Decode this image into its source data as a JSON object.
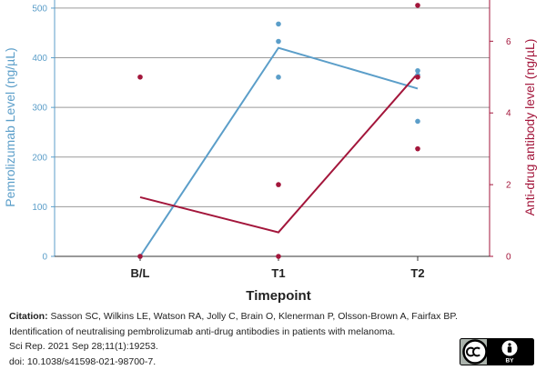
{
  "chart_data": {
    "type": "line",
    "categories": [
      "B/L",
      "T1",
      "T2"
    ],
    "xlabel": "Timepoint",
    "ylabel_left": "Pemrolizumab Level (ng/µL)",
    "ylabel_right": "Anti-drug antibody level (ng/µL)",
    "ylim_left": [
      0,
      520
    ],
    "ylim_right": [
      0,
      7.2
    ],
    "yticks_left": [
      0,
      100,
      200,
      300,
      400,
      500
    ],
    "yticks_right": [
      0,
      2,
      4,
      6
    ],
    "grid": true,
    "series": [
      {
        "axis": "left",
        "color": "#5b9ec9",
        "mean_values": [
          0,
          420,
          338
        ],
        "points": [
          {
            "x": "B/L",
            "y": 0
          },
          {
            "x": "T1",
            "y": 468
          },
          {
            "x": "T1",
            "y": 433
          },
          {
            "x": "T1",
            "y": 361
          },
          {
            "x": "T2",
            "y": 374
          },
          {
            "x": "T2",
            "y": 365
          },
          {
            "x": "T2",
            "y": 272
          }
        ]
      },
      {
        "axis": "right",
        "color": "#a3163b",
        "mean_values": [
          1.65,
          0.67,
          5.1
        ],
        "points": [
          {
            "x": "B/L",
            "y": 5.0
          },
          {
            "x": "B/L",
            "y": 0
          },
          {
            "x": "T1",
            "y": 2.0
          },
          {
            "x": "T1",
            "y": 0
          },
          {
            "x": "T2",
            "y": 7.0
          },
          {
            "x": "T2",
            "y": 5.0
          },
          {
            "x": "T2",
            "y": 3.0
          }
        ]
      }
    ]
  },
  "colors": {
    "left_axis": "#5b9ec9",
    "right_axis": "#a3163b",
    "grid": "#9a9a9a"
  },
  "citation": {
    "label": "Citation:",
    "line1": "Sasson SC, Wilkins LE, Watson RA, Jolly C, Brain O, Klenerman P, Olsson-Brown A, Fairfax BP.",
    "line2": "Identification of neutralising pembrolizumab anti-drug antibodies in patients with melanoma.",
    "line3": "Sci Rep. 2021 Sep 28;11(1):19253.",
    "line4": "doi: 10.1038/s41598-021-98700-7."
  },
  "license_badge": {
    "icon": "creative-commons-by-icon",
    "text": "BY"
  }
}
